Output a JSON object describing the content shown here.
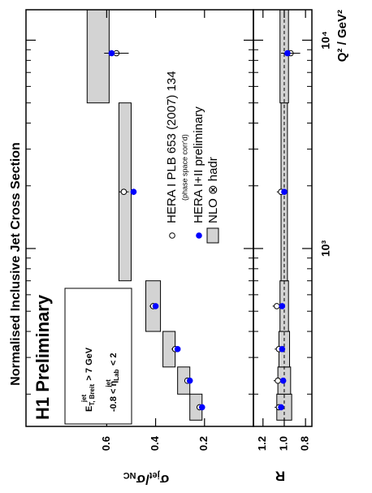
{
  "chart_data": {
    "type": "error-point",
    "title": "Normalised Inclusive Jet Cross Section",
    "annotation": "H1 Preliminary",
    "annotation_color": "#0000ff",
    "cuts": [
      {
        "before": "E",
        "sub": "T, Breit",
        "sup": "jet",
        "after": " > 7 GeV"
      },
      {
        "before": "-0.8 < η",
        "sub": "Lab",
        "sup": "jet",
        "after": " < 2"
      }
    ],
    "x_label": "Q² / GeV²",
    "log_x": true,
    "xlim": [
      140,
      14000
    ],
    "xticks": [
      {
        "value": 1000,
        "label": "10³"
      },
      {
        "value": 10000,
        "label": "10⁴"
      }
    ],
    "xminorticks": [
      200,
      300,
      400,
      500,
      600,
      700,
      800,
      900,
      2000,
      3000,
      4000,
      5000,
      6000,
      7000,
      8000,
      9000
    ],
    "bins": [
      150,
      200,
      270,
      400,
      700,
      5000,
      15000
    ],
    "x": [
      173,
      232,
      329,
      529,
      1871,
      8660
    ],
    "legend_note": "(phase space corr'd)",
    "panels": [
      {
        "y_label": {
          "main1": "σ",
          "sub1": "jet",
          "main2": "/σ",
          "sub2": "NC"
        },
        "ylim": [
          0,
          0.93
        ],
        "yticks": [
          0.2,
          0.4,
          0.6
        ],
        "nlo": {
          "name": "NLO ⊗ hadr",
          "color": "#d3d3d3",
          "low": [
            0.21,
            0.26,
            0.32,
            0.38,
            0.5,
            0.59
          ],
          "high": [
            0.26,
            0.31,
            0.37,
            0.44,
            0.55,
            0.68
          ]
        },
        "series": [
          {
            "name": "HERA I PLB 653 (2007) 134",
            "color": "#ffffff",
            "values": [
              0.22,
              0.27,
              0.32,
              0.41,
              0.53,
              0.56
            ],
            "errors": [
              0.01,
              0.01,
              0.015,
              0.015,
              0.02,
              0.05
            ]
          },
          {
            "name": "HERA I+II preliminary",
            "color": "#0000ff",
            "values": [
              0.21,
              0.26,
              0.31,
              0.4,
              0.49,
              0.58
            ],
            "errors": [
              0.005,
              0.005,
              0.008,
              0.01,
              0.012,
              0.03
            ]
          }
        ]
      },
      {
        "y_label": "R",
        "ylim": [
          0.74,
          1.29
        ],
        "yticks": [
          0.8,
          {
            "value": 1,
            "label": "1.0"
          },
          1.2
        ],
        "ref_line": 1,
        "nlo": {
          "color": "#d3d3d3",
          "low": [
            0.93,
            0.94,
            0.95,
            0.96,
            0.97,
            0.96
          ],
          "high": [
            1.07,
            1.06,
            1.05,
            1.04,
            1.03,
            1.04
          ]
        },
        "series": [
          {
            "color": "#ffffff",
            "values": [
              1.05,
              1.06,
              1.05,
              1.07,
              1.03,
              0.94
            ],
            "errors": [
              0.04,
              0.04,
              0.04,
              0.04,
              0.04,
              0.09
            ]
          },
          {
            "color": "#0000ff",
            "values": [
              1.03,
              1.01,
              1.02,
              1.02,
              1.0,
              0.97
            ],
            "errors": [
              0.02,
              0.02,
              0.02,
              0.02,
              0.02,
              0.06
            ]
          }
        ]
      }
    ]
  }
}
